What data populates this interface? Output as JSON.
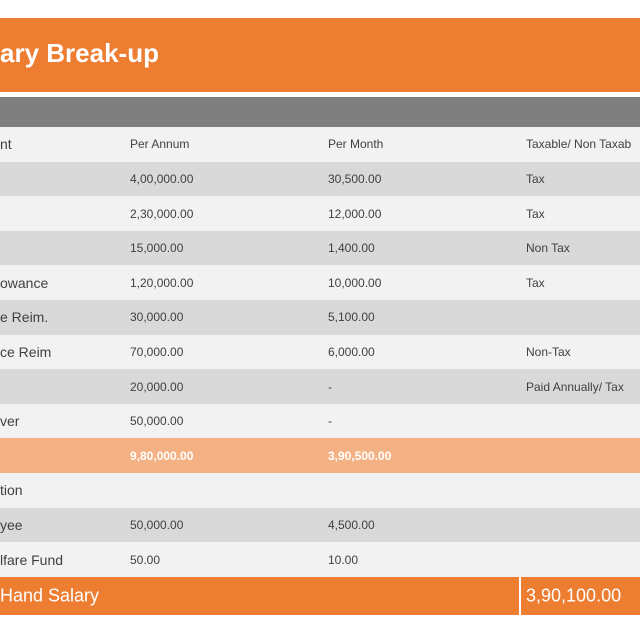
{
  "header": {
    "title": "ary Break-up"
  },
  "table": {
    "columns": [
      "nt",
      "Per Annum",
      "Per Month",
      "Taxable/ Non Taxab"
    ],
    "rows": [
      [
        null,
        "4,00,000.00",
        "30,500.00",
        "Tax"
      ],
      [
        null,
        "2,30,000.00",
        "12,000.00",
        "Tax"
      ],
      [
        null,
        "15,000.00",
        "1,400.00",
        "Non Tax"
      ],
      [
        "owance",
        "1,20,000.00",
        "10,000.00",
        "Tax"
      ],
      [
        "e Reim.",
        "30,000.00",
        "5,100.00",
        null
      ],
      [
        "ce Reim",
        "70,000.00",
        "6,000.00",
        "Non-Tax"
      ],
      [
        null,
        "20,000.00",
        "-",
        "Paid Annually/ Tax"
      ],
      [
        "ver",
        "50,000.00",
        "-",
        null
      ],
      [
        null,
        "9,80,000.00",
        "3,90,500.00",
        null
      ],
      [
        "tion",
        null,
        null,
        null
      ],
      [
        "yee",
        "50,000.00",
        "4,500.00",
        null
      ],
      [
        "lfare Fund",
        "50.00",
        "10.00",
        null
      ]
    ]
  },
  "footer": {
    "label": "Hand Salary",
    "value": "3,90,100.00"
  }
}
